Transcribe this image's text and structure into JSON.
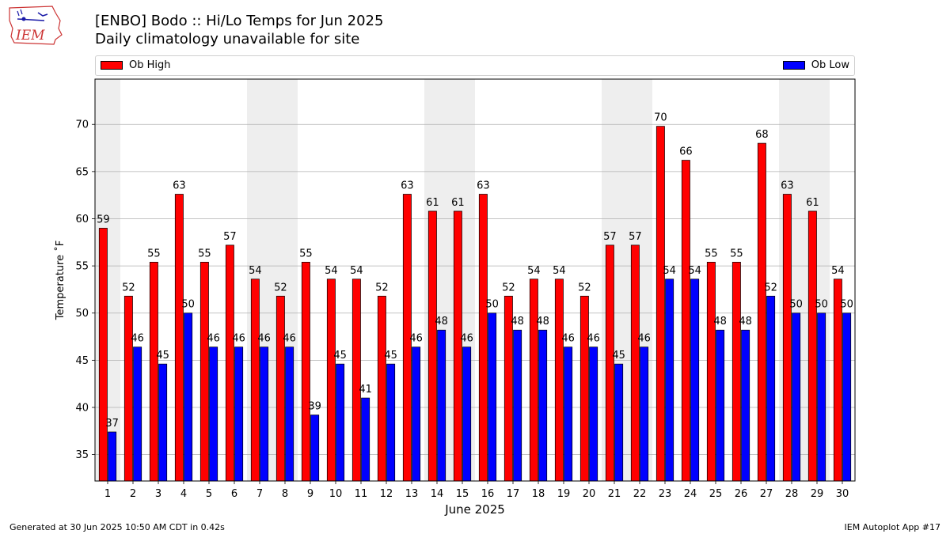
{
  "header": {
    "title": "[ENBO] Bodo :: Hi/Lo Temps for Jun 2025",
    "subtitle": "Daily climatology unavailable for site",
    "logo_text": "IEM"
  },
  "footer": {
    "left": "Generated at 30 Jun 2025 10:50 AM CDT in 0.42s",
    "right": "IEM Autoplot App #17"
  },
  "colors": {
    "high": "#ff0000",
    "low": "#0000ff",
    "weekend_band": "#eeeeee",
    "grid": "#b0b0b0",
    "logo": "#cc3333"
  },
  "chart_data": {
    "type": "bar",
    "xlabel": "June 2025",
    "ylabel": "Temperature ˚F",
    "ylim": [
      32.2,
      74.8
    ],
    "yticks": [
      35,
      40,
      45,
      50,
      55,
      60,
      65,
      70
    ],
    "grid": "horizontal",
    "legend": "top",
    "categories": [
      "1",
      "2",
      "3",
      "4",
      "5",
      "6",
      "7",
      "8",
      "9",
      "10",
      "11",
      "12",
      "13",
      "14",
      "15",
      "16",
      "17",
      "18",
      "19",
      "20",
      "21",
      "22",
      "23",
      "24",
      "25",
      "26",
      "27",
      "28",
      "29",
      "30"
    ],
    "weekend_days": [
      1,
      7,
      8,
      14,
      15,
      21,
      22,
      28,
      29
    ],
    "series": [
      {
        "name": "Ob High",
        "values": [
          59.0,
          51.8,
          55.4,
          62.6,
          55.4,
          57.2,
          53.6,
          51.8,
          55.4,
          53.6,
          53.6,
          51.8,
          62.6,
          60.8,
          60.8,
          62.6,
          51.8,
          53.6,
          53.6,
          51.8,
          57.2,
          57.2,
          69.8,
          66.2,
          55.4,
          55.4,
          68.0,
          62.6,
          60.8,
          53.6
        ],
        "labels": [
          "59",
          "52",
          "55",
          "63",
          "55",
          "57",
          "54",
          "52",
          "55",
          "54",
          "54",
          "52",
          "63",
          "61",
          "61",
          "63",
          "52",
          "54",
          "54",
          "52",
          "57",
          "57",
          "70",
          "66",
          "55",
          "55",
          "68",
          "63",
          "61",
          "54"
        ]
      },
      {
        "name": "Ob Low",
        "values": [
          37.4,
          46.4,
          44.6,
          50.0,
          46.4,
          46.4,
          46.4,
          46.4,
          39.2,
          44.6,
          41.0,
          44.6,
          46.4,
          48.2,
          46.4,
          50.0,
          48.2,
          48.2,
          46.4,
          46.4,
          44.6,
          46.4,
          53.6,
          53.6,
          48.2,
          48.2,
          51.8,
          50.0,
          50.0,
          50.0
        ],
        "labels": [
          "37",
          "46",
          "45",
          "50",
          "46",
          "46",
          "46",
          "46",
          "39",
          "45",
          "41",
          "45",
          "46",
          "48",
          "46",
          "50",
          "48",
          "48",
          "46",
          "46",
          "45",
          "46",
          "54",
          "54",
          "48",
          "48",
          "52",
          "50",
          "50",
          "50"
        ]
      }
    ]
  }
}
